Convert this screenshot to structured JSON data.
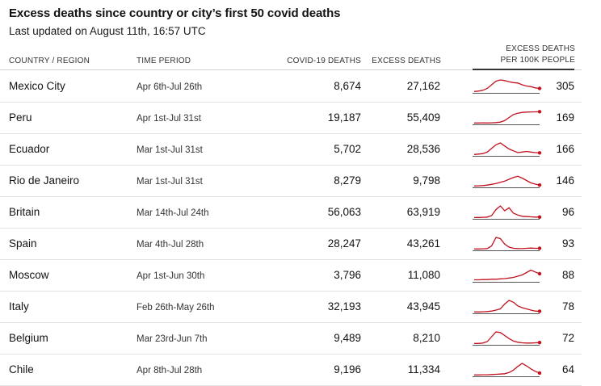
{
  "title": "Excess deaths since country or city’s first 50 covid deaths",
  "subtitle": "Last updated on August 11th, 16:57 UTC",
  "headers": {
    "country": "COUNTRY / REGION",
    "period": "TIME PERIOD",
    "covid": "COVID-19 DEATHS",
    "excess": "EXCESS DEATHS",
    "per100k_line1": "EXCESS DEATHS",
    "per100k_line2": "PER 100K PEOPLE"
  },
  "colors": {
    "spark_line": "#c1121f",
    "baseline": "#555555"
  },
  "chart_data": {
    "type": "table",
    "columns": [
      "Country / Region",
      "Time period",
      "Covid-19 deaths",
      "Excess deaths",
      "Excess deaths per 100k people"
    ],
    "rows": [
      {
        "name": "Mexico City",
        "period": "Apr 6th-Jul 26th",
        "covid": "8,674",
        "excess": "27,162",
        "per100k": "305",
        "spark": [
          0.05,
          0.08,
          0.15,
          0.3,
          0.6,
          0.9,
          1.0,
          0.95,
          0.85,
          0.78,
          0.75,
          0.6,
          0.5,
          0.45,
          0.35,
          0.3
        ]
      },
      {
        "name": "Peru",
        "period": "Apr 1st-Jul 31st",
        "covid": "19,187",
        "excess": "55,409",
        "per100k": "169",
        "spark": [
          0.05,
          0.05,
          0.06,
          0.05,
          0.06,
          0.08,
          0.12,
          0.25,
          0.5,
          0.75,
          0.85,
          0.92,
          0.95,
          0.96,
          0.97,
          0.98
        ]
      },
      {
        "name": "Ecuador",
        "period": "Mar 1st-Jul 31st",
        "covid": "5,702",
        "excess": "28,536",
        "per100k": "166",
        "spark": [
          0.05,
          0.08,
          0.12,
          0.25,
          0.55,
          0.85,
          1.0,
          0.75,
          0.5,
          0.35,
          0.2,
          0.25,
          0.3,
          0.25,
          0.2,
          0.18
        ]
      },
      {
        "name": "Rio de Janeiro",
        "period": "Mar 1st-Jul 31st",
        "covid": "8,279",
        "excess": "9,798",
        "per100k": "146",
        "spark": [
          0.05,
          0.06,
          0.08,
          0.12,
          0.18,
          0.25,
          0.35,
          0.45,
          0.6,
          0.75,
          0.85,
          0.7,
          0.5,
          0.3,
          0.2,
          0.12
        ]
      },
      {
        "name": "Britain",
        "period": "Mar 14th-Jul 24th",
        "covid": "56,063",
        "excess": "63,919",
        "per100k": "96",
        "spark": [
          0.05,
          0.05,
          0.06,
          0.08,
          0.2,
          0.7,
          1.0,
          0.6,
          0.85,
          0.4,
          0.25,
          0.15,
          0.12,
          0.1,
          0.08,
          0.08
        ]
      },
      {
        "name": "Spain",
        "period": "Mar 4th-Jul 28th",
        "covid": "28,247",
        "excess": "43,261",
        "per100k": "93",
        "spark": [
          0.05,
          0.05,
          0.06,
          0.08,
          0.3,
          1.0,
          0.9,
          0.45,
          0.2,
          0.1,
          0.08,
          0.07,
          0.1,
          0.12,
          0.1,
          0.1
        ]
      },
      {
        "name": "Moscow",
        "period": "Apr 1st-Jun 30th",
        "covid": "3,796",
        "excess": "11,080",
        "per100k": "88",
        "spark": [
          0.1,
          0.1,
          0.12,
          0.12,
          0.15,
          0.15,
          0.18,
          0.2,
          0.25,
          0.3,
          0.4,
          0.5,
          0.7,
          0.9,
          0.75,
          0.6
        ]
      },
      {
        "name": "Italy",
        "period": "Feb 26th-May 26th",
        "covid": "32,193",
        "excess": "43,945",
        "per100k": "78",
        "spark": [
          0.05,
          0.05,
          0.06,
          0.08,
          0.12,
          0.2,
          0.3,
          0.7,
          1.0,
          0.85,
          0.55,
          0.4,
          0.3,
          0.2,
          0.12,
          0.1
        ]
      },
      {
        "name": "Belgium",
        "period": "Mar 23rd-Jun 7th",
        "covid": "9,489",
        "excess": "8,210",
        "per100k": "72",
        "spark": [
          0.05,
          0.05,
          0.08,
          0.2,
          0.6,
          1.0,
          0.95,
          0.7,
          0.45,
          0.25,
          0.15,
          0.1,
          0.08,
          0.08,
          0.1,
          0.12
        ]
      },
      {
        "name": "Chile",
        "period": "Apr 8th-Jul 28th",
        "covid": "9,196",
        "excess": "11,334",
        "per100k": "64",
        "spark": [
          0.05,
          0.05,
          0.06,
          0.06,
          0.08,
          0.1,
          0.12,
          0.15,
          0.25,
          0.45,
          0.75,
          1.0,
          0.8,
          0.55,
          0.35,
          0.2
        ]
      }
    ]
  }
}
